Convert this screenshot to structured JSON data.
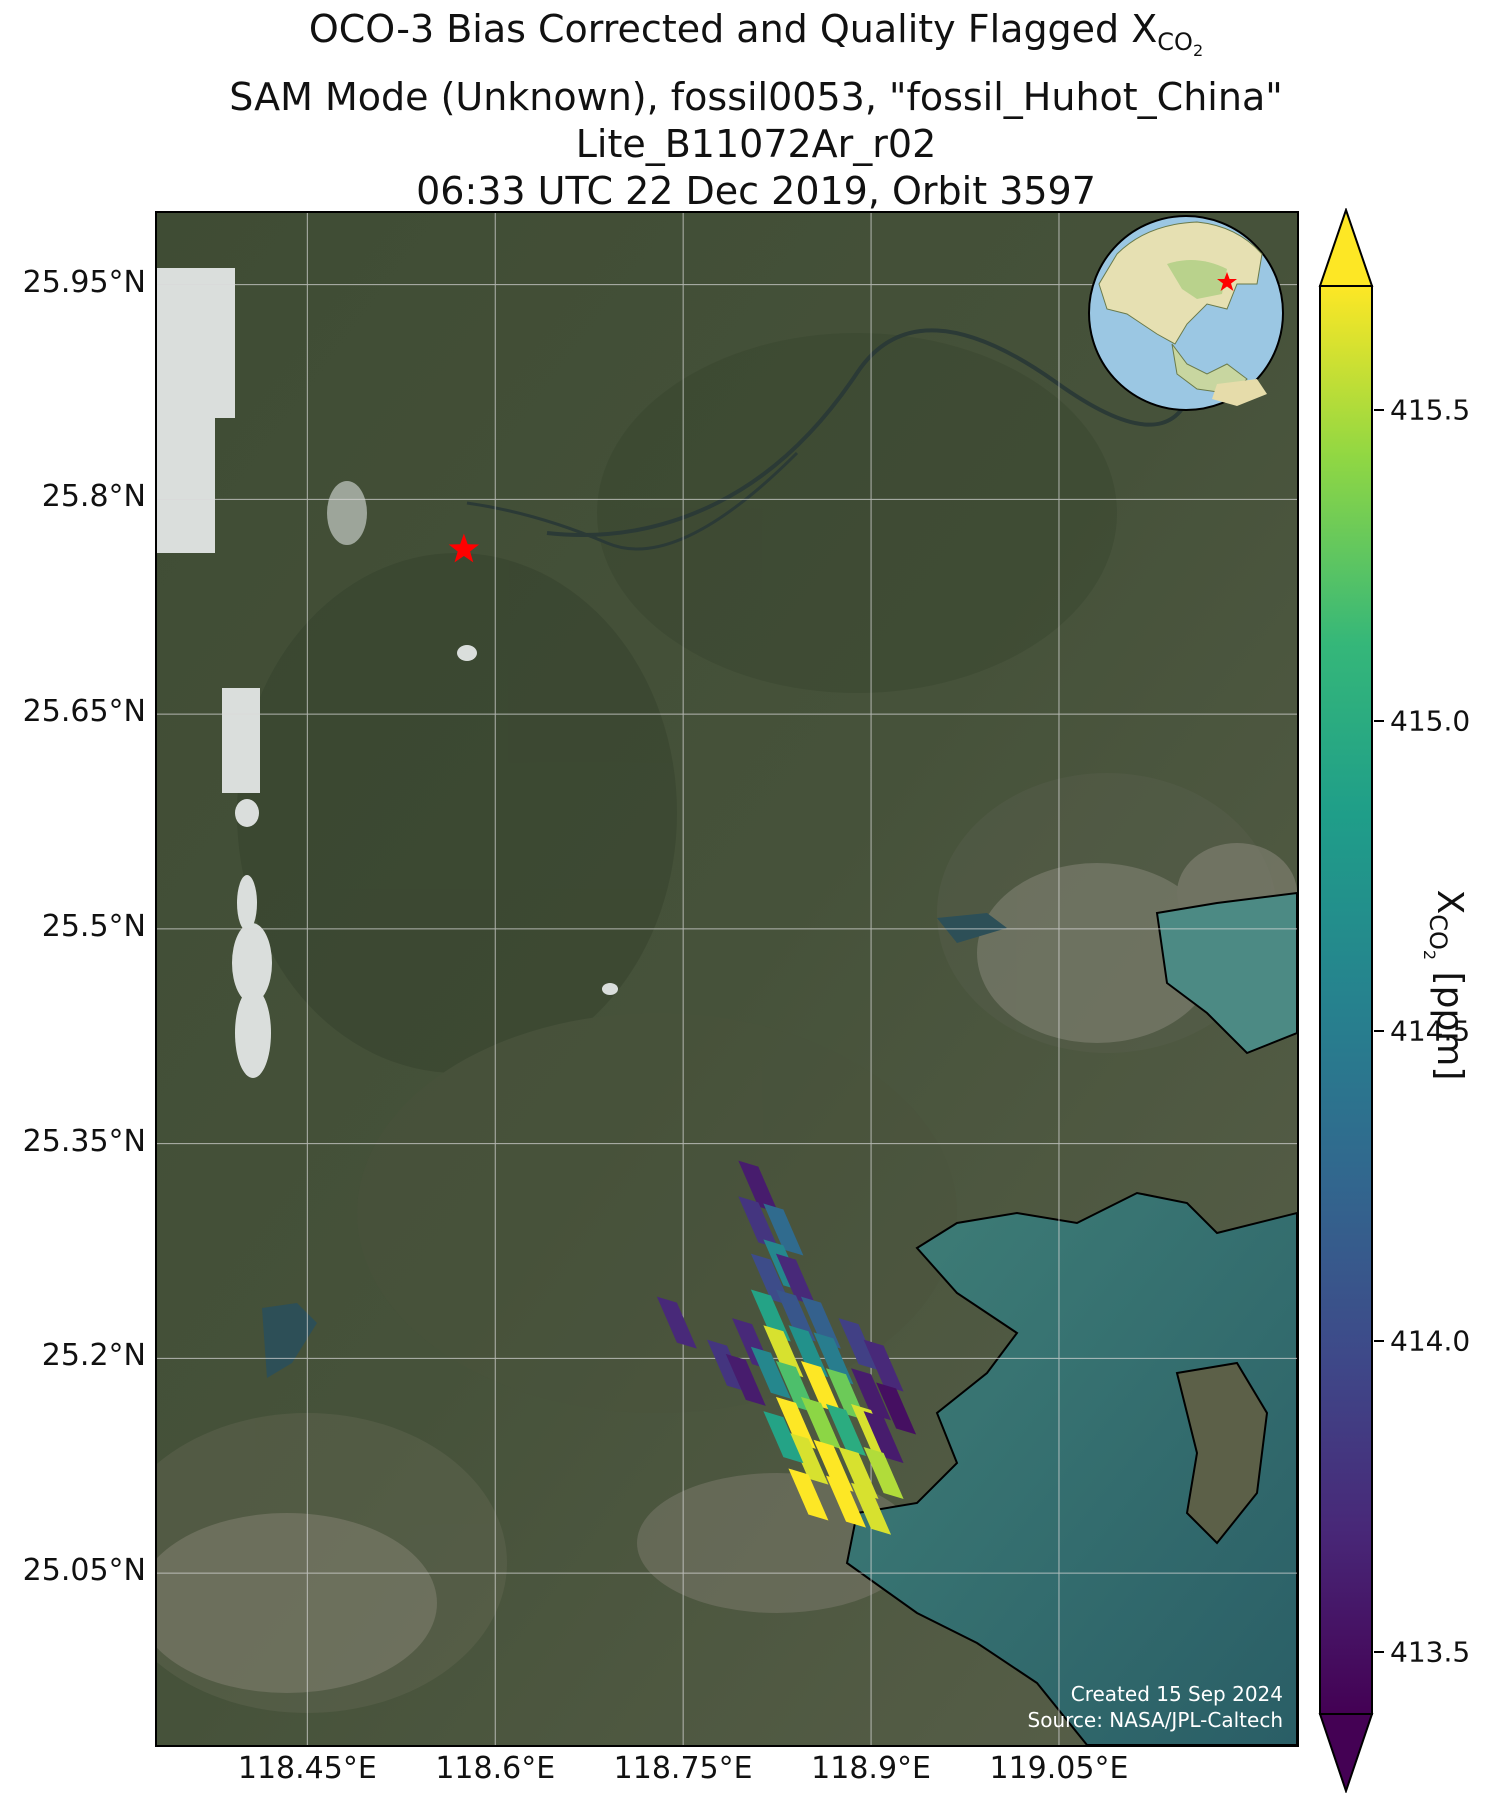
{
  "title": {
    "line1_prefix": "OCO-3 Bias Corrected and Quality Flagged X",
    "line1_sub": "CO",
    "line1_subsub": "2",
    "line2": "SAM Mode (Unknown), fossil0053, \"fossil_Huhot_China\"",
    "line3": "Lite_B11072Ar_r02",
    "line4": "06:33 UTC 22 Dec 2019, Orbit 3597"
  },
  "map": {
    "lon_range": [
      118.33,
      119.24
    ],
    "lat_range": [
      24.93,
      26.0
    ],
    "lat_ticks": [
      "25.95°N",
      "25.8°N",
      "25.65°N",
      "25.5°N",
      "25.35°N",
      "25.2°N",
      "25.05°N"
    ],
    "lon_ticks": [
      "118.45°E",
      "118.6°E",
      "118.75°E",
      "118.9°E",
      "119.05°E"
    ],
    "grid": true,
    "target_marker": {
      "symbol": "red-star",
      "lon": 118.575,
      "lat": 25.765
    },
    "credit_line1": "Created 15 Sep 2024",
    "credit_line2": "Source: NASA/JPL-Caltech",
    "basemap": "satellite imagery with coastline",
    "inset_globe": {
      "center": "East Asia",
      "marker": "red-star"
    }
  },
  "colorbar": {
    "label_prefix": "X",
    "label_sub": "CO",
    "label_subsub": "2",
    "label_suffix": " [ppm]",
    "colormap": "viridis",
    "vmin": 413.4,
    "vmax": 415.7,
    "ticks": [
      "413.5",
      "414.0",
      "414.5",
      "415.0",
      "415.5"
    ],
    "extend": "both"
  },
  "chart_data": {
    "type": "scatter",
    "title": "OCO-3 Bias Corrected and Quality Flagged XCO2",
    "xlabel": "",
    "ylabel": "",
    "units": "ppm",
    "soundings": [
      {
        "lon": 118.81,
        "lat": 25.32,
        "xco2": 413.6
      },
      {
        "lon": 118.81,
        "lat": 25.295,
        "xco2": 413.8
      },
      {
        "lon": 118.83,
        "lat": 25.29,
        "xco2": 414.3
      },
      {
        "lon": 118.83,
        "lat": 25.265,
        "xco2": 414.6
      },
      {
        "lon": 118.82,
        "lat": 25.255,
        "xco2": 414.0
      },
      {
        "lon": 118.84,
        "lat": 25.255,
        "xco2": 413.7
      },
      {
        "lon": 118.84,
        "lat": 25.23,
        "xco2": 414.1
      },
      {
        "lon": 118.82,
        "lat": 25.23,
        "xco2": 414.9
      },
      {
        "lon": 118.86,
        "lat": 25.225,
        "xco2": 414.2
      },
      {
        "lon": 118.83,
        "lat": 25.205,
        "xco2": 415.6
      },
      {
        "lon": 118.85,
        "lat": 25.205,
        "xco2": 414.7
      },
      {
        "lon": 118.87,
        "lat": 25.2,
        "xco2": 414.5
      },
      {
        "lon": 118.89,
        "lat": 25.21,
        "xco2": 413.9
      },
      {
        "lon": 118.91,
        "lat": 25.195,
        "xco2": 413.7
      },
      {
        "lon": 118.84,
        "lat": 25.18,
        "xco2": 415.2
      },
      {
        "lon": 118.86,
        "lat": 25.18,
        "xco2": 415.7
      },
      {
        "lon": 118.88,
        "lat": 25.175,
        "xco2": 415.3
      },
      {
        "lon": 118.9,
        "lat": 25.175,
        "xco2": 413.6
      },
      {
        "lon": 118.92,
        "lat": 25.165,
        "xco2": 413.5
      },
      {
        "lon": 118.84,
        "lat": 25.155,
        "xco2": 415.7
      },
      {
        "lon": 118.86,
        "lat": 25.155,
        "xco2": 415.4
      },
      {
        "lon": 118.88,
        "lat": 25.15,
        "xco2": 415.0
      },
      {
        "lon": 118.9,
        "lat": 25.15,
        "xco2": 415.6
      },
      {
        "lon": 118.91,
        "lat": 25.145,
        "xco2": 413.6
      },
      {
        "lon": 118.85,
        "lat": 25.13,
        "xco2": 415.6
      },
      {
        "lon": 118.87,
        "lat": 25.125,
        "xco2": 415.7
      },
      {
        "lon": 118.89,
        "lat": 25.12,
        "xco2": 415.6
      },
      {
        "lon": 118.91,
        "lat": 25.12,
        "xco2": 415.5
      },
      {
        "lon": 118.85,
        "lat": 25.105,
        "xco2": 415.7
      },
      {
        "lon": 118.88,
        "lat": 25.1,
        "xco2": 415.7
      },
      {
        "lon": 118.9,
        "lat": 25.095,
        "xco2": 415.6
      },
      {
        "lon": 118.745,
        "lat": 25.225,
        "xco2": 413.7
      },
      {
        "lon": 118.785,
        "lat": 25.195,
        "xco2": 413.8
      },
      {
        "lon": 118.8,
        "lat": 25.185,
        "xco2": 413.6
      },
      {
        "lon": 118.805,
        "lat": 25.21,
        "xco2": 413.7
      },
      {
        "lon": 118.82,
        "lat": 25.19,
        "xco2": 414.6
      },
      {
        "lon": 118.83,
        "lat": 25.145,
        "xco2": 414.9
      }
    ]
  }
}
